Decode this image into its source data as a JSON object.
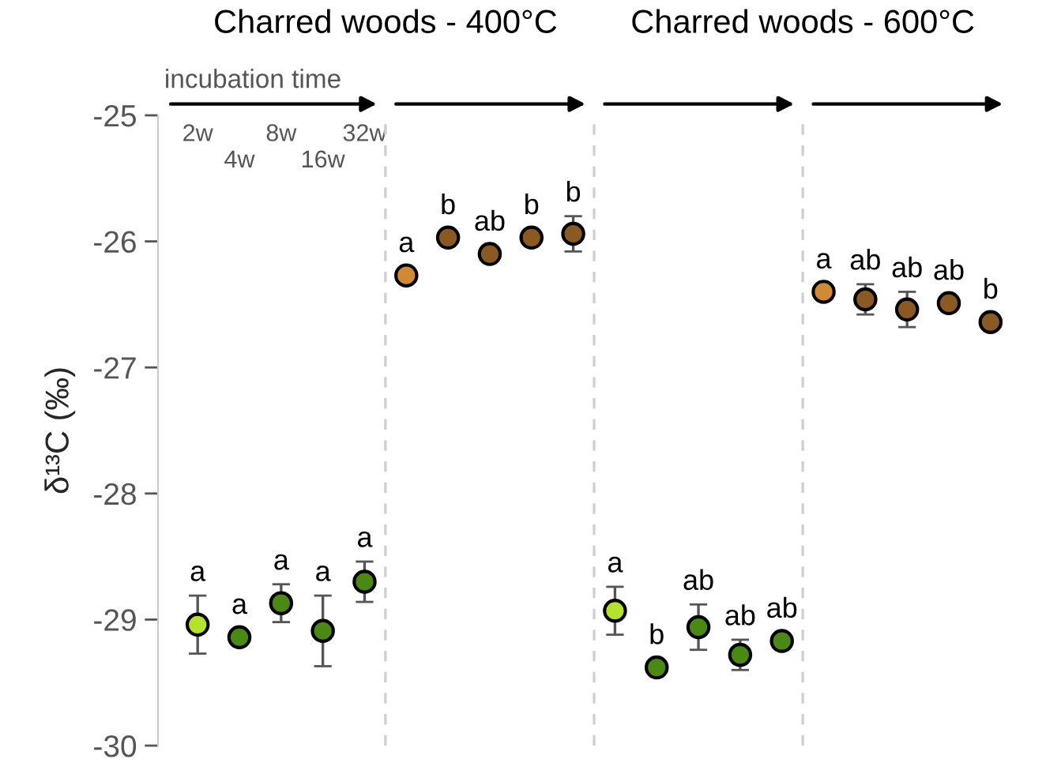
{
  "chart_data": {
    "type": "scatter",
    "ylabel": "δ¹³C (‰)",
    "annotations": [
      "Charred woods - 400°C",
      "Charred woods - 600°C",
      "incubation time"
    ],
    "categories": [
      "2w",
      "4w",
      "8w",
      "16w",
      "32w",
      null,
      null,
      null,
      null,
      null,
      null,
      null,
      null,
      null,
      null,
      null,
      null,
      null,
      null,
      null
    ],
    "values": [
      -29.04,
      -29.14,
      -28.87,
      -29.09,
      -28.7,
      -26.27,
      -25.97,
      -26.1,
      -25.97,
      -25.94,
      -28.93,
      -29.38,
      -29.06,
      -29.28,
      -29.17,
      -26.4,
      -26.46,
      -26.54,
      -26.49,
      -26.64
    ],
    "errors": [
      0.23,
      null,
      0.15,
      0.28,
      0.16,
      null,
      null,
      null,
      null,
      0.14,
      0.19,
      null,
      0.18,
      0.12,
      null,
      null,
      0.12,
      0.14,
      null,
      null
    ],
    "colors": [
      "#b3e32a",
      "#4a8a14",
      "#4a8a14",
      "#4a8a14",
      "#4a8a14",
      "#d08a35",
      "#8a5a22",
      "#8a5a22",
      "#8a5a22",
      "#8a5a22",
      "#b3e32a",
      "#4a8a14",
      "#4a8a14",
      "#4a8a14",
      "#4a8a14",
      "#d08a35",
      "#8a5a22",
      "#8a5a22",
      "#8a5a22",
      "#8a5a22"
    ],
    "value_labels": [
      "a",
      "a",
      "a",
      "a",
      "a",
      "a",
      "b",
      "ab",
      "b",
      "b",
      "a",
      "b",
      "ab",
      "ab",
      "ab",
      "a",
      "ab",
      "ab",
      "ab",
      "b"
    ],
    "ylim": [
      -30,
      -25
    ],
    "yticks": [
      -30,
      -29,
      -28,
      -27,
      -26,
      -25
    ],
    "marker": "circle",
    "grid": false,
    "legend": false
  }
}
